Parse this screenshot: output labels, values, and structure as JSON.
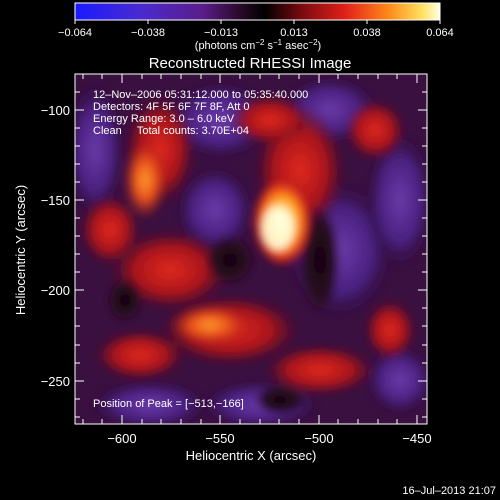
{
  "colorbar": {
    "ticks": [
      "−0.064",
      "−0.038",
      "−0.013",
      "0.013",
      "0.038",
      "0.064"
    ],
    "units_prefix": "(photons cm",
    "units_exp1": "−2",
    "units_mid": " s",
    "units_exp2": "−1",
    "units_mid2": " asec",
    "units_exp3": "−2",
    "units_suffix": ")"
  },
  "title": "Reconstructed RHESSI Image",
  "info_lines": [
    "12–Nov–2006 05:31:12.000 to 05:35:40.000",
    "Detectors: 4F 5F 6F 7F 8F, Att 0",
    "Energy Range: 3.0 – 6.0 keV",
    "Clean     Total counts: 3.70E+04"
  ],
  "peak_label": "Position of Peak = [−513,−166]",
  "x_axis": {
    "label": "Heliocentric X (arcsec)",
    "ticks": [
      "−600",
      "−550",
      "−500",
      "−450"
    ]
  },
  "y_axis": {
    "label": "Heliocentric Y (arcsec)",
    "ticks": [
      "−100",
      "−150",
      "−200",
      "−250"
    ]
  },
  "timestamp": "16–Jul–2013 21:07",
  "colors": {
    "background": "#000000",
    "text": "#ffffff"
  }
}
